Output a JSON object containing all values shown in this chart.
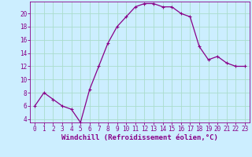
{
  "x": [
    0,
    1,
    2,
    3,
    4,
    5,
    6,
    7,
    8,
    9,
    10,
    11,
    12,
    13,
    14,
    15,
    16,
    17,
    18,
    19,
    20,
    21,
    22,
    23
  ],
  "y": [
    6,
    8,
    7,
    6,
    5.5,
    3.5,
    8.5,
    12,
    15.5,
    18,
    19.5,
    21,
    21.5,
    21.5,
    21,
    21,
    20,
    19.5,
    15,
    13,
    13.5,
    12.5,
    12,
    12
  ],
  "line_color": "#880088",
  "marker": "+",
  "marker_size": 3,
  "marker_linewidth": 0.8,
  "background_color": "#cceeff",
  "grid_color": "#aaddcc",
  "xlabel": "Windchill (Refroidissement éolien,°C)",
  "ylabel": "",
  "xlim": [
    -0.5,
    23.5
  ],
  "ylim": [
    3.5,
    21.8
  ],
  "yticks": [
    4,
    6,
    8,
    10,
    12,
    14,
    16,
    18,
    20
  ],
  "xticks": [
    0,
    1,
    2,
    3,
    4,
    5,
    6,
    7,
    8,
    9,
    10,
    11,
    12,
    13,
    14,
    15,
    16,
    17,
    18,
    19,
    20,
    21,
    22,
    23
  ],
  "tick_color": "#880088",
  "label_color": "#880088",
  "label_fontsize": 6.5,
  "tick_fontsize": 5.5,
  "linewidth": 0.9
}
